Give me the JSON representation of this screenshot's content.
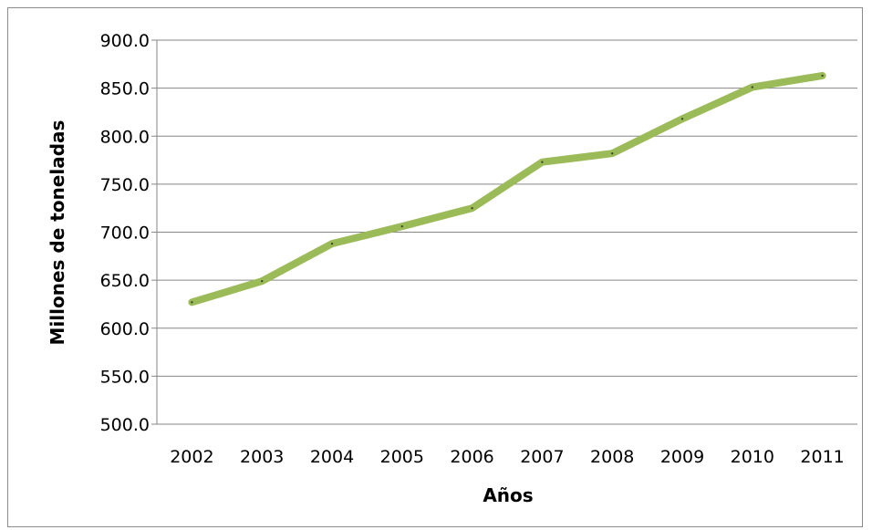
{
  "chart_data": {
    "type": "line",
    "title": "",
    "xlabel": "Años",
    "ylabel": "Millones de toneladas",
    "categories": [
      "2002",
      "2003",
      "2004",
      "2005",
      "2006",
      "2007",
      "2008",
      "2009",
      "2010",
      "2011"
    ],
    "series": [
      {
        "values": [
          627,
          649,
          688,
          706,
          725,
          773,
          782,
          818,
          851,
          863
        ]
      }
    ],
    "ylim": [
      500,
      900
    ],
    "yticks": [
      "500.0",
      "550.0",
      "600.0",
      "650.0",
      "700.0",
      "750.0",
      "800.0",
      "850.0",
      "900.0"
    ],
    "grid": true,
    "legend": "none",
    "line_color": "#9bbb59",
    "grid_color": "#868686"
  }
}
